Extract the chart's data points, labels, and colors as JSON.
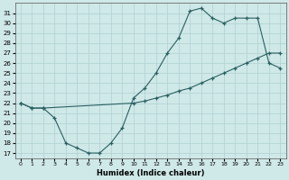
{
  "xlabel": "Humidex (Indice chaleur)",
  "bg_color": "#cfe8e8",
  "grid_color": "#b0d0d0",
  "line_color": "#2a6060",
  "xlim": [
    -0.5,
    23.5
  ],
  "ylim": [
    16.5,
    32.0
  ],
  "yticks": [
    17,
    18,
    19,
    20,
    21,
    22,
    23,
    24,
    25,
    26,
    27,
    28,
    29,
    30,
    31
  ],
  "xticks": [
    0,
    1,
    2,
    3,
    4,
    5,
    6,
    7,
    8,
    9,
    10,
    11,
    12,
    13,
    14,
    15,
    16,
    17,
    18,
    19,
    20,
    21,
    22,
    23
  ],
  "line1_x": [
    0,
    1,
    2,
    3,
    4,
    5,
    6,
    7,
    8,
    9,
    10,
    11,
    12,
    13,
    14,
    15,
    16,
    17,
    18,
    19,
    20,
    21,
    22,
    23
  ],
  "line1_y": [
    22.0,
    21.5,
    21.5,
    20.5,
    18.0,
    17.5,
    17.0,
    17.0,
    18.0,
    19.5,
    22.5,
    23.5,
    25.0,
    27.0,
    28.5,
    31.2,
    31.5,
    30.5,
    30.0,
    30.5,
    30.5,
    30.5,
    26.0,
    25.5
  ],
  "line2_x": [
    0,
    1,
    2,
    10,
    11,
    12,
    13,
    14,
    15,
    16,
    17,
    18,
    19,
    20,
    21,
    22,
    23
  ],
  "line2_y": [
    22.0,
    21.5,
    21.5,
    22.0,
    22.2,
    22.5,
    22.8,
    23.2,
    23.5,
    24.0,
    24.5,
    25.0,
    25.5,
    26.0,
    26.5,
    27.0,
    27.0
  ]
}
